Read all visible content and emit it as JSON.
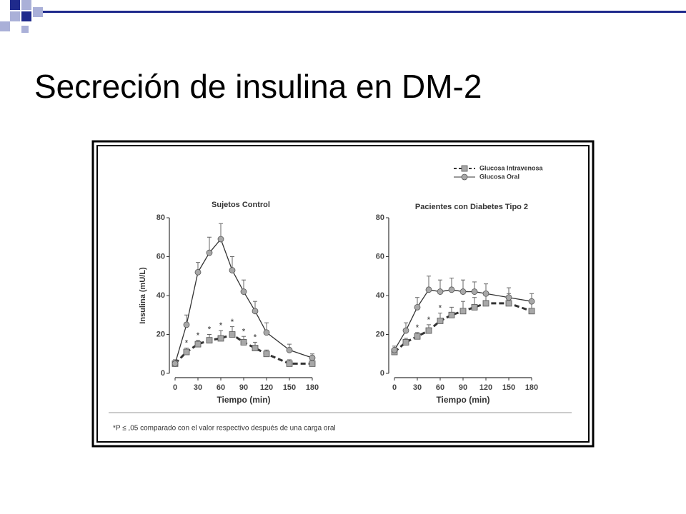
{
  "slide_title": "Secreción de insulina en DM-2",
  "footnote": "*P ≤ ,05 comparado con el valor respectivo después de una carga oral",
  "chart_data": [
    {
      "type": "line",
      "title": "Sujetos Control",
      "y_label": "Insulina (mU/L)",
      "x_label": "Tiempo (min)",
      "x": [
        0,
        15,
        30,
        45,
        60,
        75,
        90,
        105,
        120,
        150,
        180
      ],
      "xlim": [
        0,
        180
      ],
      "xticks": [
        0,
        30,
        60,
        90,
        120,
        150,
        180
      ],
      "ylim": [
        0,
        80
      ],
      "yticks": [
        0,
        20,
        40,
        60,
        80
      ],
      "series": [
        {
          "color": "#333333",
          "marker": "square",
          "marker_color": "#a8a8a8",
          "line_style": "dashed",
          "values": [
            5,
            11,
            15,
            17,
            18,
            20,
            16,
            13,
            10,
            5,
            5
          ],
          "errors": [
            1,
            2,
            2,
            3,
            4,
            4,
            3,
            3,
            2,
            2,
            2
          ]
        },
        {
          "color": "#333333",
          "marker": "circle",
          "marker_color": "#a8a8a8",
          "line_style": "solid",
          "values": [
            5,
            25,
            52,
            62,
            69,
            53,
            42,
            32,
            21,
            12,
            8
          ],
          "errors": [
            2,
            5,
            5,
            8,
            8,
            7,
            6,
            5,
            5,
            3,
            2
          ]
        }
      ],
      "annotations": [
        {
          "x": 15,
          "series": 0,
          "text": "*"
        },
        {
          "x": 30,
          "series": 0,
          "text": "*"
        },
        {
          "x": 45,
          "series": 0,
          "text": "*"
        },
        {
          "x": 60,
          "series": 0,
          "text": "*"
        },
        {
          "x": 75,
          "series": 0,
          "text": "*"
        },
        {
          "x": 90,
          "series": 0,
          "text": "*"
        },
        {
          "x": 105,
          "series": 0,
          "text": "*"
        }
      ]
    },
    {
      "type": "line",
      "title": "Pacientes con Diabetes Tipo 2",
      "x_label": "Tiempo (min)",
      "x": [
        0,
        15,
        30,
        45,
        60,
        75,
        90,
        105,
        120,
        150,
        180
      ],
      "xlim": [
        0,
        180
      ],
      "xticks": [
        0,
        30,
        60,
        90,
        120,
        150,
        180
      ],
      "ylim": [
        0,
        80
      ],
      "yticks": [
        0,
        20,
        40,
        60,
        80
      ],
      "legend": "upper right",
      "series": [
        {
          "name": "Glucosa Intravenosa",
          "color": "#333333",
          "marker": "square",
          "marker_color": "#a8a8a8",
          "line_style": "dashed",
          "values": [
            11,
            16,
            19,
            22,
            27,
            30,
            32,
            34,
            36,
            36,
            32
          ],
          "errors": [
            2,
            2,
            2,
            3,
            4,
            4,
            5,
            5,
            5,
            5,
            4
          ]
        },
        {
          "name": "Glucosa Oral",
          "color": "#333333",
          "marker": "circle",
          "marker_color": "#a8a8a8",
          "line_style": "solid",
          "values": [
            12,
            22,
            34,
            43,
            42,
            43,
            42,
            42,
            41,
            39,
            37
          ],
          "errors": [
            2,
            4,
            5,
            7,
            6,
            6,
            6,
            5,
            5,
            5,
            4
          ]
        }
      ],
      "annotations": [
        {
          "x": 30,
          "series": 0,
          "text": "*"
        },
        {
          "x": 45,
          "series": 0,
          "text": "*"
        },
        {
          "x": 60,
          "series": 0,
          "text": "*"
        }
      ]
    }
  ]
}
